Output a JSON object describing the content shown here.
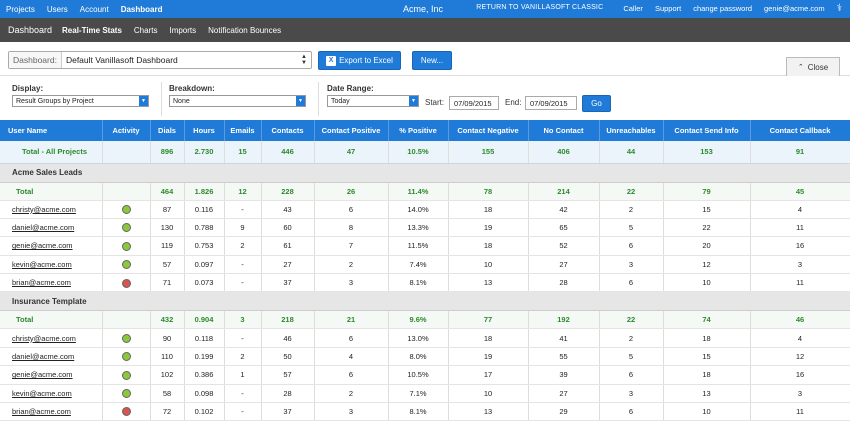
{
  "topbar": {
    "nav": [
      "Projects",
      "Users",
      "Account",
      "Dashboard"
    ],
    "title": "Acme, Inc",
    "classic": "RETURN TO VANILLASOFT CLASSIC",
    "caller": "Caller",
    "support": "Support",
    "change_password": "change password",
    "user_email": "genie@acme.com"
  },
  "subbar": [
    "Dashboard",
    "Real-Time Stats",
    "Charts",
    "Imports",
    "Notification Bounces"
  ],
  "toolbar": {
    "dashboard_label": "Dashboard:",
    "dashboard_value": "Default Vanillasoft Dashboard",
    "excel_label": "Export to Excel",
    "new_label": "New...",
    "close_label": "Close"
  },
  "filters": {
    "display_label": "Display:",
    "display_value": "Result Groups by Project",
    "breakdown_label": "Breakdown:",
    "breakdown_value": "None",
    "date_range_label": "Date Range:",
    "date_range_value": "Today",
    "start_label": "Start:",
    "start_value": "07/09/2015",
    "end_label": "End:",
    "end_value": "07/09/2015",
    "go_label": "Go"
  },
  "table": {
    "columns": [
      "User Name",
      "Activity",
      "Dials",
      "Hours",
      "Emails",
      "Contacts",
      "Contact Positive",
      "% Positive",
      "Contact Negative",
      "No Contact",
      "Unreachables",
      "Contact Send Info",
      "Contact Callback"
    ],
    "grand_total": [
      "Total - All Projects",
      "",
      "896",
      "2.730",
      "15",
      "446",
      "47",
      "10.5%",
      "155",
      "406",
      "44",
      "153",
      "91"
    ],
    "groups": [
      {
        "name": "Acme Sales Leads",
        "total": [
          "Total",
          "",
          "464",
          "1.826",
          "12",
          "228",
          "26",
          "11.4%",
          "78",
          "214",
          "22",
          "79",
          "45"
        ],
        "rows": [
          {
            "user": "christy@acme.com",
            "status": "green",
            "cells": [
              "87",
              "0.116",
              "-",
              "43",
              "6",
              "14.0%",
              "18",
              "42",
              "2",
              "15",
              "4"
            ]
          },
          {
            "user": "daniel@acme.com",
            "status": "green",
            "cells": [
              "130",
              "0.788",
              "9",
              "60",
              "8",
              "13.3%",
              "19",
              "65",
              "5",
              "22",
              "11"
            ]
          },
          {
            "user": "genie@acme.com",
            "status": "green",
            "cells": [
              "119",
              "0.753",
              "2",
              "61",
              "7",
              "11.5%",
              "18",
              "52",
              "6",
              "20",
              "16"
            ]
          },
          {
            "user": "kevin@acme.com",
            "status": "green",
            "cells": [
              "57",
              "0.097",
              "-",
              "27",
              "2",
              "7.4%",
              "10",
              "27",
              "3",
              "12",
              "3"
            ]
          },
          {
            "user": "brian@acme.com",
            "status": "red",
            "cells": [
              "71",
              "0.073",
              "-",
              "37",
              "3",
              "8.1%",
              "13",
              "28",
              "6",
              "10",
              "11"
            ]
          }
        ]
      },
      {
        "name": "Insurance Template",
        "total": [
          "Total",
          "",
          "432",
          "0.904",
          "3",
          "218",
          "21",
          "9.6%",
          "77",
          "192",
          "22",
          "74",
          "46"
        ],
        "rows": [
          {
            "user": "christy@acme.com",
            "status": "green",
            "cells": [
              "90",
              "0.118",
              "-",
              "46",
              "6",
              "13.0%",
              "18",
              "41",
              "2",
              "18",
              "4"
            ]
          },
          {
            "user": "daniel@acme.com",
            "status": "green",
            "cells": [
              "110",
              "0.199",
              "2",
              "50",
              "4",
              "8.0%",
              "19",
              "55",
              "5",
              "15",
              "12"
            ]
          },
          {
            "user": "genie@acme.com",
            "status": "green",
            "cells": [
              "102",
              "0.386",
              "1",
              "57",
              "6",
              "10.5%",
              "17",
              "39",
              "6",
              "18",
              "16"
            ]
          },
          {
            "user": "kevin@acme.com",
            "status": "green",
            "cells": [
              "58",
              "0.098",
              "-",
              "28",
              "2",
              "7.1%",
              "10",
              "27",
              "3",
              "13",
              "3"
            ]
          },
          {
            "user": "brian@acme.com",
            "status": "red",
            "cells": [
              "72",
              "0.102",
              "-",
              "37",
              "3",
              "8.1%",
              "13",
              "29",
              "6",
              "10",
              "11"
            ]
          }
        ]
      }
    ]
  }
}
